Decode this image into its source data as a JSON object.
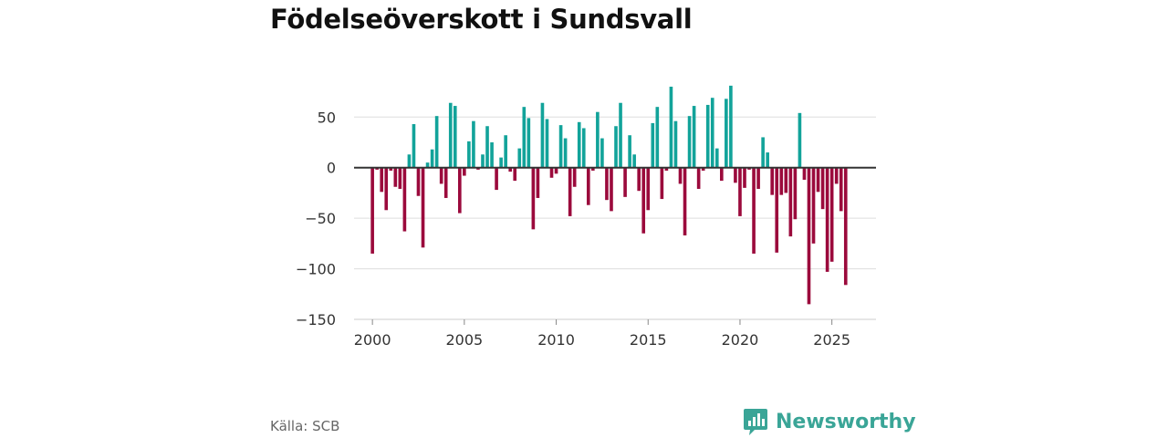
{
  "chart_data": {
    "type": "bar",
    "title": "Födelseöverskott i Sundsvall",
    "xlabel": "",
    "ylabel": "",
    "x_start": 2000.0,
    "x_step": 0.25,
    "xlim": [
      1999.0,
      2027.4
    ],
    "ylim": [
      -150,
      80
    ],
    "x_ticks": [
      2000,
      2005,
      2010,
      2015,
      2020,
      2025
    ],
    "x_tick_labels": [
      "2000",
      "2005",
      "2010",
      "2015",
      "2020",
      "2025"
    ],
    "y_ticks": [
      50,
      0,
      -50,
      -100,
      -150
    ],
    "y_tick_labels": [
      "50",
      "0",
      "−50",
      "−100",
      "−150"
    ],
    "grid": true,
    "colors": {
      "positive": "#12a39a",
      "negative": "#9b0a3c",
      "zero_line": "#333333",
      "grid": "#dddddd"
    },
    "values": [
      -85,
      -2,
      -24,
      -42,
      -3,
      -19,
      -21,
      -63,
      13,
      43,
      -28,
      -79,
      5,
      18,
      51,
      -16,
      -30,
      64,
      61,
      -45,
      -8,
      26,
      46,
      -2,
      13,
      41,
      25,
      -22,
      10,
      32,
      -4,
      -13,
      19,
      60,
      49,
      -61,
      -30,
      64,
      48,
      -10,
      -6,
      42,
      29,
      -48,
      -19,
      45,
      39,
      -37,
      -3,
      55,
      29,
      -32,
      -43,
      41,
      64,
      -29,
      32,
      13,
      -23,
      -65,
      -42,
      44,
      60,
      -31,
      -3,
      80,
      46,
      -16,
      -67,
      51,
      61,
      -21,
      -3,
      62,
      69,
      19,
      -13,
      68,
      81,
      -15,
      -48,
      -20,
      -2,
      -85,
      -21,
      30,
      15,
      -27,
      -84,
      -27,
      -25,
      -68,
      -51,
      54,
      -12,
      -135,
      -75,
      -24,
      -41,
      -103,
      -93,
      -16,
      -43,
      -116
    ]
  },
  "footer": {
    "source": "Källa: SCB",
    "brand": "Newsworthy",
    "brand_icon": "newsworthy-logo-icon"
  }
}
